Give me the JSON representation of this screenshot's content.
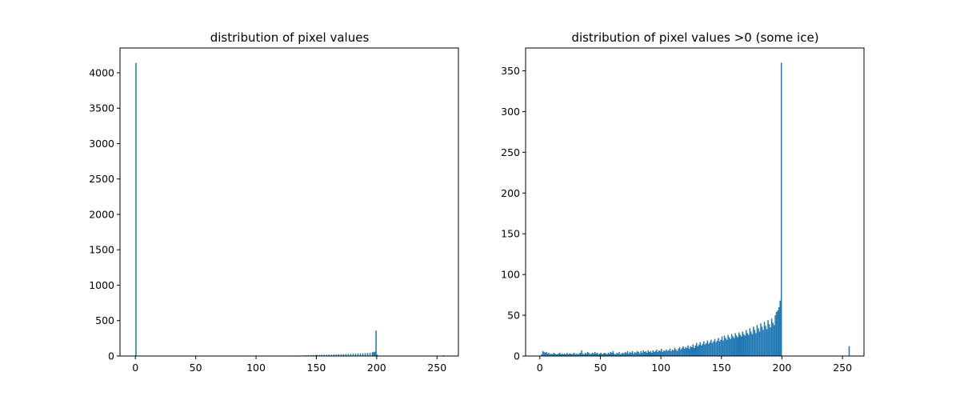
{
  "chart_data": [
    {
      "type": "bar",
      "title": "distribution of pixel values",
      "xlabel": "",
      "ylabel": "",
      "xlim": [
        -12.75,
        267.75
      ],
      "ylim": [
        0,
        4350
      ],
      "xticks": [
        0,
        50,
        100,
        150,
        200,
        250
      ],
      "yticks": [
        0,
        500,
        1000,
        1500,
        2000,
        2500,
        3000,
        3500,
        4000
      ],
      "grid": false,
      "legend": "none",
      "bin_width": 1,
      "color": "#1f77b4",
      "bins": [
        [
          0,
          4140
        ],
        [
          35,
          3
        ],
        [
          60,
          3
        ],
        [
          85,
          3
        ],
        [
          88,
          3
        ],
        [
          91,
          3
        ],
        [
          95,
          3
        ],
        [
          99,
          3
        ],
        [
          101,
          4
        ],
        [
          105,
          3
        ],
        [
          108,
          3
        ],
        [
          112,
          4
        ],
        [
          115,
          4
        ],
        [
          118,
          4
        ],
        [
          121,
          5
        ],
        [
          124,
          5
        ],
        [
          127,
          5
        ],
        [
          130,
          6
        ],
        [
          133,
          7
        ],
        [
          136,
          8
        ],
        [
          139,
          9
        ],
        [
          141,
          10
        ],
        [
          143,
          11
        ],
        [
          145,
          12
        ],
        [
          147,
          13
        ],
        [
          149,
          14
        ],
        [
          150,
          15
        ],
        [
          152,
          16
        ],
        [
          154,
          17
        ],
        [
          156,
          18
        ],
        [
          158,
          18
        ],
        [
          160,
          19
        ],
        [
          162,
          20
        ],
        [
          164,
          21
        ],
        [
          166,
          22
        ],
        [
          168,
          24
        ],
        [
          170,
          25
        ],
        [
          172,
          26
        ],
        [
          174,
          28
        ],
        [
          176,
          29
        ],
        [
          178,
          30
        ],
        [
          180,
          32
        ],
        [
          182,
          33
        ],
        [
          184,
          35
        ],
        [
          186,
          36
        ],
        [
          188,
          38
        ],
        [
          190,
          40
        ],
        [
          192,
          43
        ],
        [
          194,
          46
        ],
        [
          196,
          52
        ],
        [
          197,
          55
        ],
        [
          198,
          62
        ],
        [
          199,
          360
        ],
        [
          200,
          20
        ],
        [
          255,
          11
        ]
      ]
    },
    {
      "type": "bar",
      "title": "distribution of pixel values >0 (some ice)",
      "xlabel": "",
      "ylabel": "",
      "xlim": [
        -11.75,
        267.75
      ],
      "ylim": [
        0,
        378
      ],
      "xticks": [
        0,
        50,
        100,
        150,
        200,
        250
      ],
      "yticks": [
        0,
        50,
        100,
        150,
        200,
        250,
        300,
        350
      ],
      "grid": false,
      "legend": "none",
      "bin_width": 1,
      "color": "#1f77b4",
      "bins": [
        [
          1,
          2
        ],
        [
          2,
          6
        ],
        [
          3,
          5
        ],
        [
          4,
          4
        ],
        [
          5,
          5
        ],
        [
          6,
          3
        ],
        [
          7,
          4
        ],
        [
          8,
          2
        ],
        [
          9,
          3
        ],
        [
          10,
          2
        ],
        [
          11,
          4
        ],
        [
          12,
          3
        ],
        [
          13,
          2
        ],
        [
          14,
          2
        ],
        [
          15,
          3
        ],
        [
          16,
          4
        ],
        [
          17,
          2
        ],
        [
          18,
          3
        ],
        [
          19,
          2
        ],
        [
          20,
          3
        ],
        [
          21,
          2
        ],
        [
          22,
          4
        ],
        [
          23,
          2
        ],
        [
          24,
          3
        ],
        [
          25,
          3
        ],
        [
          26,
          2
        ],
        [
          27,
          3
        ],
        [
          28,
          4
        ],
        [
          29,
          2
        ],
        [
          30,
          3
        ],
        [
          31,
          2
        ],
        [
          32,
          3
        ],
        [
          33,
          4
        ],
        [
          34,
          7
        ],
        [
          35,
          3
        ],
        [
          36,
          2
        ],
        [
          37,
          4
        ],
        [
          38,
          3
        ],
        [
          39,
          5
        ],
        [
          40,
          4
        ],
        [
          41,
          2
        ],
        [
          42,
          3
        ],
        [
          43,
          4
        ],
        [
          44,
          3
        ],
        [
          45,
          5
        ],
        [
          46,
          3
        ],
        [
          47,
          4
        ],
        [
          48,
          2
        ],
        [
          49,
          3
        ],
        [
          50,
          4
        ],
        [
          51,
          2
        ],
        [
          52,
          3
        ],
        [
          53,
          4
        ],
        [
          54,
          3
        ],
        [
          55,
          2
        ],
        [
          56,
          4
        ],
        [
          57,
          3
        ],
        [
          58,
          5
        ],
        [
          59,
          4
        ],
        [
          60,
          6
        ],
        [
          61,
          3
        ],
        [
          62,
          2
        ],
        [
          63,
          4
        ],
        [
          64,
          3
        ],
        [
          65,
          5
        ],
        [
          66,
          2
        ],
        [
          67,
          3
        ],
        [
          68,
          4
        ],
        [
          69,
          3
        ],
        [
          70,
          5
        ],
        [
          71,
          4
        ],
        [
          72,
          6
        ],
        [
          73,
          3
        ],
        [
          74,
          5
        ],
        [
          75,
          4
        ],
        [
          76,
          6
        ],
        [
          77,
          3
        ],
        [
          78,
          5
        ],
        [
          79,
          4
        ],
        [
          80,
          6
        ],
        [
          81,
          5
        ],
        [
          82,
          3
        ],
        [
          83,
          6
        ],
        [
          84,
          4
        ],
        [
          85,
          7
        ],
        [
          86,
          5
        ],
        [
          87,
          6
        ],
        [
          88,
          4
        ],
        [
          89,
          7
        ],
        [
          90,
          5
        ],
        [
          91,
          6
        ],
        [
          92,
          4
        ],
        [
          93,
          7
        ],
        [
          94,
          5
        ],
        [
          95,
          6
        ],
        [
          96,
          8
        ],
        [
          97,
          5
        ],
        [
          98,
          7
        ],
        [
          99,
          6
        ],
        [
          100,
          9
        ],
        [
          101,
          5
        ],
        [
          102,
          7
        ],
        [
          103,
          6
        ],
        [
          104,
          8
        ],
        [
          105,
          6
        ],
        [
          106,
          7
        ],
        [
          107,
          9
        ],
        [
          108,
          6
        ],
        [
          109,
          8
        ],
        [
          110,
          7
        ],
        [
          111,
          10
        ],
        [
          112,
          8
        ],
        [
          113,
          6
        ],
        [
          114,
          9
        ],
        [
          115,
          11
        ],
        [
          116,
          8
        ],
        [
          117,
          10
        ],
        [
          118,
          12
        ],
        [
          119,
          9
        ],
        [
          120,
          11
        ],
        [
          121,
          10
        ],
        [
          122,
          13
        ],
        [
          123,
          9
        ],
        [
          124,
          12
        ],
        [
          125,
          11
        ],
        [
          126,
          14
        ],
        [
          127,
          10
        ],
        [
          128,
          13
        ],
        [
          129,
          16
        ],
        [
          130,
          12
        ],
        [
          131,
          14
        ],
        [
          132,
          17
        ],
        [
          133,
          13
        ],
        [
          134,
          15
        ],
        [
          135,
          18
        ],
        [
          136,
          14
        ],
        [
          137,
          16
        ],
        [
          138,
          19
        ],
        [
          139,
          15
        ],
        [
          140,
          17
        ],
        [
          141,
          20
        ],
        [
          142,
          16
        ],
        [
          143,
          18
        ],
        [
          144,
          21
        ],
        [
          145,
          17
        ],
        [
          146,
          19
        ],
        [
          147,
          22
        ],
        [
          148,
          18
        ],
        [
          149,
          20
        ],
        [
          150,
          24
        ],
        [
          151,
          19
        ],
        [
          152,
          25
        ],
        [
          153,
          22
        ],
        [
          154,
          20
        ],
        [
          155,
          26
        ],
        [
          156,
          23
        ],
        [
          157,
          21
        ],
        [
          158,
          27
        ],
        [
          159,
          24
        ],
        [
          160,
          22
        ],
        [
          161,
          28
        ],
        [
          162,
          25
        ],
        [
          163,
          23
        ],
        [
          164,
          29
        ],
        [
          165,
          26
        ],
        [
          166,
          24
        ],
        [
          167,
          30
        ],
        [
          168,
          27
        ],
        [
          169,
          25
        ],
        [
          170,
          32
        ],
        [
          171,
          28
        ],
        [
          172,
          26
        ],
        [
          173,
          34
        ],
        [
          174,
          30
        ],
        [
          175,
          27
        ],
        [
          176,
          36
        ],
        [
          177,
          32
        ],
        [
          178,
          28
        ],
        [
          179,
          38
        ],
        [
          180,
          34
        ],
        [
          181,
          30
        ],
        [
          182,
          40
        ],
        [
          183,
          36
        ],
        [
          184,
          32
        ],
        [
          185,
          42
        ],
        [
          186,
          37
        ],
        [
          187,
          33
        ],
        [
          188,
          44
        ],
        [
          189,
          39
        ],
        [
          190,
          35
        ],
        [
          191,
          46
        ],
        [
          192,
          41
        ],
        [
          193,
          38
        ],
        [
          194,
          50
        ],
        [
          195,
          54
        ],
        [
          196,
          56
        ],
        [
          197,
          60
        ],
        [
          198,
          68
        ],
        [
          199,
          360
        ],
        [
          255,
          12
        ]
      ]
    }
  ]
}
